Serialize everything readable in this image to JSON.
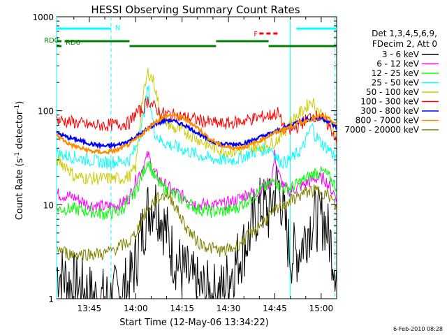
{
  "chart_data": {
    "type": "line",
    "title": "HESSI Observing Summary Count Rates",
    "xlabel": "Start Time (12-May-06 13:34:22)",
    "ylabel_main": "Count Rate (s",
    "ylabel_sup1": "-1",
    "ylabel_mid": " detector",
    "ylabel_sup2": "-1",
    "ylabel_end": ")",
    "yscale": "log",
    "ylim": [
      1,
      1000
    ],
    "xlim_minutes": [
      34.4,
      125.0
    ],
    "y_ticks": [
      {
        "value": 1,
        "label": "1"
      },
      {
        "value": 10,
        "label": "10"
      },
      {
        "value": 100,
        "label": "100"
      },
      {
        "value": 1000,
        "label": "1000"
      }
    ],
    "x_ticks": [
      {
        "value": 45,
        "label": "13:45"
      },
      {
        "value": 60,
        "label": "14:00"
      },
      {
        "value": 75,
        "label": "14:15"
      },
      {
        "value": 90,
        "label": "14:30"
      },
      {
        "value": 105,
        "label": "14:45"
      },
      {
        "value": 120,
        "label": "15:00"
      }
    ],
    "legend": {
      "header": [
        "Det 1,3,4,5,6,9,",
        "FDecim 2, Att 0"
      ],
      "placement": "right"
    },
    "flags": [
      {
        "label": "N",
        "color": "#00ffff",
        "segments": [
          [
            34.4,
            52
          ],
          [
            112,
            125
          ]
        ]
      },
      {
        "label": "RD0",
        "color": "#008000",
        "segments": [
          [
            34.4,
            36
          ],
          [
            37,
            58
          ],
          [
            86,
            103
          ]
        ]
      },
      {
        "label": "RD6",
        "color": "#008000",
        "segments": [
          [
            34.4,
            36
          ],
          [
            58,
            86
          ],
          [
            103,
            125
          ]
        ]
      },
      {
        "label": "F",
        "color": "#ff0000",
        "segments": [
          [
            100,
            106
          ]
        ]
      }
    ],
    "night_lines": [
      52,
      124.5
    ],
    "day_lines": [
      34.4,
      110
    ],
    "series": [
      {
        "name": "3 - 6 keV",
        "color": "#000000",
        "points": [
          [
            34.5,
            2
          ],
          [
            38,
            1.5
          ],
          [
            42,
            1.3
          ],
          [
            47,
            1
          ],
          [
            50,
            1
          ],
          [
            52,
            1
          ],
          [
            55,
            1.2
          ],
          [
            58,
            1.4
          ],
          [
            60,
            2.5
          ],
          [
            62,
            5
          ],
          [
            64,
            9
          ],
          [
            66,
            11
          ],
          [
            68,
            8
          ],
          [
            70,
            5
          ],
          [
            72,
            3
          ],
          [
            75,
            2
          ],
          [
            80,
            1.3
          ],
          [
            85,
            1.1
          ],
          [
            88,
            1.2
          ],
          [
            91,
            2
          ],
          [
            94,
            3
          ],
          [
            97,
            5
          ],
          [
            99,
            8
          ],
          [
            101,
            10
          ],
          [
            103,
            8
          ],
          [
            105,
            14
          ],
          [
            106,
            18
          ],
          [
            107,
            12
          ],
          [
            108,
            7
          ],
          [
            110,
            3
          ],
          [
            112,
            3
          ],
          [
            114,
            4
          ],
          [
            116,
            6
          ],
          [
            118,
            7
          ],
          [
            121,
            7
          ],
          [
            123,
            4
          ],
          [
            125,
            2
          ]
        ]
      },
      {
        "name": "6 - 12 keV",
        "color": "#ff00ff",
        "points": [
          [
            34.5,
            13
          ],
          [
            40,
            12
          ],
          [
            45,
            10
          ],
          [
            50,
            9.5
          ],
          [
            55,
            10
          ],
          [
            58,
            12
          ],
          [
            60,
            18
          ],
          [
            62,
            24
          ],
          [
            64,
            34
          ],
          [
            66,
            22
          ],
          [
            68,
            18
          ],
          [
            72,
            14
          ],
          [
            76,
            12
          ],
          [
            80,
            10
          ],
          [
            84,
            10
          ],
          [
            88,
            10
          ],
          [
            92,
            11
          ],
          [
            96,
            13
          ],
          [
            100,
            14
          ],
          [
            104,
            18
          ],
          [
            105,
            35
          ],
          [
            106,
            22
          ],
          [
            108,
            15
          ],
          [
            110,
            14
          ],
          [
            114,
            16
          ],
          [
            118,
            19
          ],
          [
            121,
            19
          ],
          [
            123,
            15
          ],
          [
            125,
            12
          ]
        ]
      },
      {
        "name": "12 - 25 keV",
        "color": "#00ff00",
        "points": [
          [
            34.5,
            9
          ],
          [
            40,
            9
          ],
          [
            45,
            8.5
          ],
          [
            50,
            8
          ],
          [
            55,
            8.5
          ],
          [
            58,
            11
          ],
          [
            60,
            14
          ],
          [
            62,
            20
          ],
          [
            64,
            30
          ],
          [
            66,
            20
          ],
          [
            68,
            16
          ],
          [
            72,
            13
          ],
          [
            76,
            11
          ],
          [
            80,
            9
          ],
          [
            84,
            8.5
          ],
          [
            88,
            8.5
          ],
          [
            92,
            9
          ],
          [
            96,
            11
          ],
          [
            100,
            14
          ],
          [
            104,
            17
          ],
          [
            105,
            19
          ],
          [
            106,
            16
          ],
          [
            108,
            15
          ],
          [
            110,
            15
          ],
          [
            114,
            18
          ],
          [
            118,
            22
          ],
          [
            121,
            22
          ],
          [
            123,
            19
          ],
          [
            125,
            15
          ]
        ]
      },
      {
        "name": "25 - 50 keV",
        "color": "#00ffff",
        "points": [
          [
            34.5,
            35
          ],
          [
            40,
            32
          ],
          [
            45,
            30
          ],
          [
            50,
            28
          ],
          [
            55,
            29
          ],
          [
            58,
            30
          ],
          [
            60,
            40
          ],
          [
            62,
            70
          ],
          [
            64,
            180
          ],
          [
            66,
            60
          ],
          [
            68,
            48
          ],
          [
            72,
            42
          ],
          [
            76,
            38
          ],
          [
            80,
            34
          ],
          [
            84,
            31
          ],
          [
            88,
            30
          ],
          [
            92,
            30
          ],
          [
            96,
            34
          ],
          [
            100,
            38
          ],
          [
            104,
            40
          ],
          [
            106,
            30
          ],
          [
            108,
            28
          ],
          [
            110,
            30
          ],
          [
            114,
            40
          ],
          [
            117,
            70
          ],
          [
            118,
            55
          ],
          [
            121,
            42
          ],
          [
            123,
            38
          ],
          [
            125,
            30
          ]
        ]
      },
      {
        "name": "50 - 100 keV",
        "color": "#cccc00",
        "points": [
          [
            34.5,
            30
          ],
          [
            38,
            25
          ],
          [
            40,
            20
          ],
          [
            45,
            19
          ],
          [
            50,
            19
          ],
          [
            55,
            19
          ],
          [
            58,
            20
          ],
          [
            60,
            25
          ],
          [
            62,
            120
          ],
          [
            64,
            260
          ],
          [
            66,
            200
          ],
          [
            68,
            90
          ],
          [
            72,
            65
          ],
          [
            76,
            60
          ],
          [
            80,
            50
          ],
          [
            84,
            42
          ],
          [
            88,
            38
          ],
          [
            92,
            37
          ],
          [
            96,
            40
          ],
          [
            100,
            42
          ],
          [
            104,
            45
          ],
          [
            106,
            50
          ],
          [
            108,
            60
          ],
          [
            110,
            75
          ],
          [
            114,
            100
          ],
          [
            117,
            130
          ],
          [
            118,
            110
          ],
          [
            121,
            85
          ],
          [
            123,
            72
          ],
          [
            125,
            55
          ]
        ]
      },
      {
        "name": "100 - 300 keV",
        "color": "#ff0000",
        "points": [
          [
            34.5,
            80
          ],
          [
            40,
            75
          ],
          [
            45,
            70
          ],
          [
            50,
            70
          ],
          [
            55,
            72
          ],
          [
            58,
            74
          ],
          [
            60,
            95
          ],
          [
            62,
            100
          ],
          [
            64,
            130
          ],
          [
            66,
            110
          ],
          [
            68,
            95
          ],
          [
            72,
            90
          ],
          [
            76,
            85
          ],
          [
            80,
            80
          ],
          [
            84,
            75
          ],
          [
            88,
            72
          ],
          [
            92,
            75
          ],
          [
            96,
            80
          ],
          [
            100,
            85
          ],
          [
            104,
            90
          ],
          [
            106,
            95
          ],
          [
            108,
            65
          ],
          [
            110,
            60
          ],
          [
            114,
            75
          ],
          [
            117,
            90
          ],
          [
            118,
            88
          ],
          [
            121,
            80
          ],
          [
            123,
            65
          ],
          [
            125,
            50
          ]
        ]
      },
      {
        "name": "300 - 800 keV",
        "color": "#0000ff",
        "points": [
          [
            34.5,
            58
          ],
          [
            38,
            52
          ],
          [
            42,
            48
          ],
          [
            46,
            44
          ],
          [
            50,
            42
          ],
          [
            54,
            43
          ],
          [
            58,
            48
          ],
          [
            62,
            58
          ],
          [
            66,
            72
          ],
          [
            70,
            80
          ],
          [
            72,
            78
          ],
          [
            76,
            70
          ],
          [
            80,
            58
          ],
          [
            84,
            48
          ],
          [
            88,
            44
          ],
          [
            92,
            44
          ],
          [
            96,
            46
          ],
          [
            100,
            52
          ],
          [
            104,
            58
          ],
          [
            108,
            65
          ],
          [
            112,
            75
          ],
          [
            116,
            82
          ],
          [
            120,
            84
          ],
          [
            123,
            75
          ],
          [
            125,
            65
          ]
        ]
      },
      {
        "name": "800 - 7000 keV",
        "color": "#ff8c00",
        "points": [
          [
            34.5,
            55
          ],
          [
            38,
            45
          ],
          [
            42,
            40
          ],
          [
            46,
            37
          ],
          [
            50,
            36
          ],
          [
            54,
            38
          ],
          [
            58,
            44
          ],
          [
            62,
            56
          ],
          [
            66,
            75
          ],
          [
            70,
            88
          ],
          [
            72,
            90
          ],
          [
            76,
            82
          ],
          [
            80,
            66
          ],
          [
            84,
            50
          ],
          [
            88,
            42
          ],
          [
            92,
            40
          ],
          [
            96,
            42
          ],
          [
            100,
            48
          ],
          [
            104,
            56
          ],
          [
            108,
            64
          ],
          [
            112,
            72
          ],
          [
            116,
            80
          ],
          [
            120,
            88
          ],
          [
            123,
            80
          ],
          [
            125,
            70
          ]
        ]
      },
      {
        "name": "7000 - 20000 keV",
        "color": "#808000",
        "points": [
          [
            34.5,
            3.5
          ],
          [
            38,
            3
          ],
          [
            42,
            3
          ],
          [
            46,
            3
          ],
          [
            50,
            3
          ],
          [
            54,
            3.5
          ],
          [
            58,
            4
          ],
          [
            60,
            5
          ],
          [
            62,
            7
          ],
          [
            64,
            9
          ],
          [
            66,
            11
          ],
          [
            68,
            12
          ],
          [
            70,
            13
          ],
          [
            72,
            11
          ],
          [
            74,
            8
          ],
          [
            76,
            6
          ],
          [
            80,
            4
          ],
          [
            84,
            3.5
          ],
          [
            88,
            3.2
          ],
          [
            92,
            3.5
          ],
          [
            96,
            4.5
          ],
          [
            100,
            6
          ],
          [
            104,
            8
          ],
          [
            108,
            10
          ],
          [
            112,
            12
          ],
          [
            116,
            14
          ],
          [
            120,
            14
          ],
          [
            123,
            12
          ],
          [
            125,
            9
          ]
        ]
      }
    ]
  },
  "footer": {
    "timestamp": "6-Feb-2010 08:28"
  }
}
